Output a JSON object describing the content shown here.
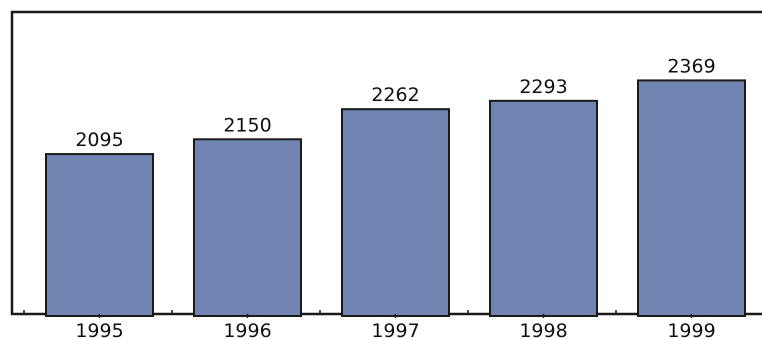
{
  "chart_data": {
    "type": "bar",
    "title": "",
    "xlabel": "",
    "ylabel": "",
    "categories": [
      "1995",
      "1996",
      "1997",
      "1998",
      "1999"
    ],
    "values": [
      2095,
      2150,
      2262,
      2293,
      2369
    ],
    "data_labels": [
      "2095",
      "2150",
      "2262",
      "2293",
      "2369"
    ],
    "ylim": [
      1500,
      2450
    ],
    "grid": false,
    "legend": "none",
    "colors": {
      "bar_fill": "#7284b2",
      "bar_edge": "#1a1a1a",
      "frame": "#1a1a1a",
      "background": "#ffffff"
    }
  }
}
